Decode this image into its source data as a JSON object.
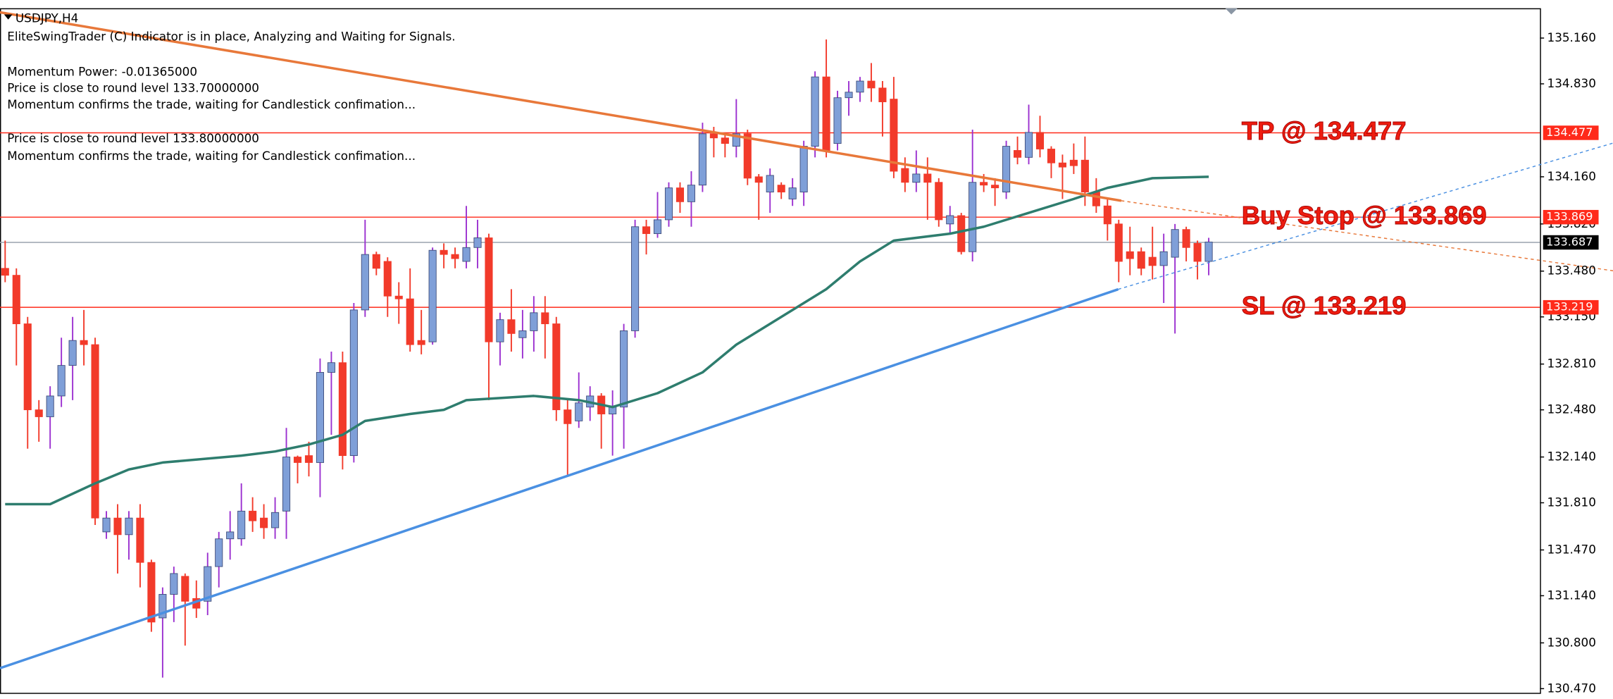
{
  "chart_data": {
    "type": "candlestick",
    "title": "USDJPY,H4",
    "info_lines": [
      "EliteSwingTrader (C) Indicator is in place, Analyzing and Waiting for Signals.",
      "Momentum Power: -0.01365000",
      "Price is close to round level 133.70000000",
      "Momentum confirms the trade, waiting for Candlestick confimation...",
      "Price is close to round level 133.80000000",
      "Momentum confirms the trade, waiting for Candlestick confimation..."
    ],
    "ylim": [
      130.44,
      135.375
    ],
    "yticks": [
      {
        "value": 135.16,
        "label": "135.160"
      },
      {
        "value": 134.83,
        "label": "134.830"
      },
      {
        "value": 134.16,
        "label": "134.160"
      },
      {
        "value": 133.82,
        "label": "133.820"
      },
      {
        "value": 133.48,
        "label": "133.480"
      },
      {
        "value": 133.15,
        "label": "133.150"
      },
      {
        "value": 132.81,
        "label": "132.810"
      },
      {
        "value": 132.48,
        "label": "132.480"
      },
      {
        "value": 132.14,
        "label": "132.140"
      },
      {
        "value": 131.81,
        "label": "131.810"
      },
      {
        "value": 131.47,
        "label": "131.470"
      },
      {
        "value": 131.14,
        "label": "131.140"
      },
      {
        "value": 130.8,
        "label": "130.800"
      },
      {
        "value": 130.47,
        "label": "130.470"
      }
    ],
    "up_color": "#7f9fd8",
    "up_wick_color": "#9b30d0",
    "down_color": "#f23a2a",
    "open": [
      133.5,
      133.45,
      133.1,
      132.48,
      132.43,
      132.58,
      132.8,
      132.98,
      132.95,
      131.6,
      131.7,
      131.58,
      131.7,
      131.38,
      130.98,
      131.15,
      131.28,
      131.12,
      131.1,
      131.35,
      131.55,
      131.55,
      131.75,
      131.7,
      131.63,
      131.75,
      132.14,
      132.15,
      132.1,
      132.75,
      132.82,
      132.15,
      133.2,
      133.6,
      133.55,
      133.3,
      133.28,
      132.98,
      132.97,
      133.63,
      133.6,
      133.55,
      133.65,
      133.72,
      132.97,
      133.13,
      133.0,
      133.05,
      133.18,
      133.1,
      132.48,
      132.4,
      132.5,
      132.58,
      132.45,
      132.5,
      133.05,
      133.8,
      133.75,
      133.85,
      134.08,
      133.98,
      134.1,
      134.47,
      134.44,
      134.38,
      134.47,
      134.16,
      134.05,
      134.1,
      134.0,
      134.05,
      134.38,
      134.88,
      134.4,
      134.73,
      134.77,
      134.85,
      134.8,
      134.72,
      134.22,
      134.12,
      134.18,
      134.12,
      133.82,
      133.88,
      133.62,
      134.12,
      134.1,
      134.05,
      134.35,
      134.3,
      134.48,
      134.36,
      134.26,
      134.28,
      134.28,
      134.05,
      133.95,
      133.82,
      133.62,
      133.62,
      133.58,
      133.52,
      133.58,
      133.78,
      133.68,
      133.55
    ],
    "high": [
      133.7,
      133.5,
      133.15,
      132.55,
      132.65,
      133.0,
      133.15,
      133.2,
      133.0,
      131.75,
      131.8,
      131.75,
      131.8,
      131.4,
      131.2,
      131.35,
      131.3,
      131.25,
      131.45,
      131.6,
      131.75,
      131.95,
      131.85,
      131.8,
      131.85,
      132.35,
      132.15,
      132.25,
      132.85,
      132.9,
      132.9,
      133.25,
      133.85,
      133.62,
      133.58,
      133.4,
      133.5,
      133.2,
      133.65,
      133.68,
      133.65,
      133.95,
      133.85,
      133.75,
      133.18,
      133.35,
      133.2,
      133.3,
      133.3,
      133.15,
      132.55,
      132.75,
      132.65,
      132.6,
      132.62,
      133.1,
      133.85,
      133.85,
      134.05,
      134.12,
      134.12,
      134.2,
      134.55,
      134.52,
      134.48,
      134.72,
      134.5,
      134.18,
      134.22,
      134.12,
      134.15,
      134.42,
      134.92,
      135.15,
      134.78,
      134.85,
      134.88,
      134.98,
      134.85,
      134.88,
      134.3,
      134.35,
      134.3,
      134.15,
      133.95,
      133.9,
      134.5,
      134.18,
      134.15,
      134.42,
      134.45,
      134.68,
      134.6,
      134.38,
      134.32,
      134.4,
      134.45,
      134.15,
      134.0,
      133.85,
      133.8,
      133.65,
      133.8,
      133.75,
      133.82,
      133.8,
      133.7,
      133.72
    ],
    "low": [
      133.4,
      132.8,
      132.2,
      132.25,
      132.2,
      132.5,
      132.55,
      132.8,
      131.65,
      131.55,
      131.3,
      131.4,
      131.2,
      130.88,
      130.55,
      130.95,
      130.78,
      130.98,
      131.0,
      131.2,
      131.4,
      131.5,
      131.6,
      131.55,
      131.55,
      131.55,
      131.95,
      132.0,
      131.85,
      132.3,
      132.05,
      132.1,
      133.15,
      133.45,
      133.15,
      133.1,
      132.9,
      132.88,
      132.95,
      133.5,
      133.5,
      133.5,
      133.5,
      132.55,
      132.8,
      132.9,
      132.85,
      132.9,
      132.85,
      132.4,
      132.0,
      132.35,
      132.4,
      132.2,
      132.15,
      132.2,
      133.0,
      133.6,
      133.72,
      133.8,
      133.9,
      133.8,
      134.05,
      134.3,
      134.3,
      134.3,
      134.1,
      133.85,
      133.9,
      134.0,
      133.95,
      133.95,
      134.3,
      134.3,
      134.35,
      134.6,
      134.7,
      134.7,
      134.45,
      134.15,
      134.05,
      134.05,
      133.85,
      133.8,
      133.75,
      133.6,
      133.55,
      134.05,
      133.95,
      134.0,
      134.25,
      134.25,
      134.3,
      134.15,
      134.0,
      134.18,
      133.95,
      133.9,
      133.7,
      133.4,
      133.45,
      133.45,
      133.42,
      133.25,
      133.03,
      133.55,
      133.42,
      133.45
    ],
    "close": [
      133.45,
      133.1,
      132.48,
      132.43,
      132.58,
      132.8,
      132.98,
      132.95,
      131.7,
      131.7,
      131.58,
      131.7,
      131.38,
      130.95,
      131.15,
      131.3,
      131.1,
      131.05,
      131.35,
      131.55,
      131.6,
      131.75,
      131.68,
      131.63,
      131.74,
      132.14,
      132.1,
      132.1,
      132.75,
      132.82,
      132.15,
      133.2,
      133.6,
      133.5,
      133.3,
      133.28,
      132.95,
      132.95,
      133.63,
      133.6,
      133.57,
      133.65,
      133.72,
      132.97,
      133.13,
      133.03,
      133.05,
      133.18,
      133.1,
      132.48,
      132.38,
      132.53,
      132.58,
      132.45,
      132.5,
      133.05,
      133.8,
      133.75,
      133.85,
      134.08,
      133.98,
      134.1,
      134.47,
      134.44,
      134.4,
      134.47,
      134.15,
      134.12,
      134.17,
      134.05,
      134.08,
      134.38,
      134.88,
      134.35,
      134.73,
      134.77,
      134.85,
      134.8,
      134.7,
      134.2,
      134.12,
      134.18,
      134.12,
      133.85,
      133.88,
      133.62,
      134.12,
      134.1,
      134.08,
      134.38,
      134.3,
      134.48,
      134.36,
      134.26,
      134.23,
      134.24,
      134.05,
      133.95,
      133.82,
      133.55,
      133.57,
      133.5,
      133.52,
      133.62,
      133.78,
      133.65,
      133.55,
      133.69
    ],
    "moving_average": {
      "color": "#2e7d6e",
      "x": [
        0,
        4,
        8,
        11,
        14,
        21,
        24,
        27,
        30,
        32,
        36,
        39,
        41,
        47,
        51,
        54,
        58,
        62,
        65,
        69,
        73,
        76,
        79,
        84,
        87,
        91,
        95,
        98,
        102,
        107
      ],
      "values": [
        131.8,
        131.8,
        131.95,
        132.05,
        132.1,
        132.15,
        132.18,
        132.23,
        132.3,
        132.4,
        132.45,
        132.48,
        132.55,
        132.58,
        132.55,
        132.5,
        132.6,
        132.75,
        132.95,
        133.15,
        133.35,
        133.55,
        133.7,
        133.75,
        133.8,
        133.9,
        134.0,
        134.08,
        134.15,
        134.16
      ]
    },
    "levels": [
      {
        "name": "TP @ 134.477",
        "value": 134.477,
        "color": "#ff2a1a"
      },
      {
        "name": "Buy Stop @ 133.869",
        "value": 133.869,
        "color": "#ff2a1a"
      },
      {
        "name": "SL @ 133.219",
        "value": 133.219,
        "color": "#ff2a1a"
      }
    ],
    "current_price": {
      "value": 133.687,
      "color": "#9aa4ad"
    }
  }
}
